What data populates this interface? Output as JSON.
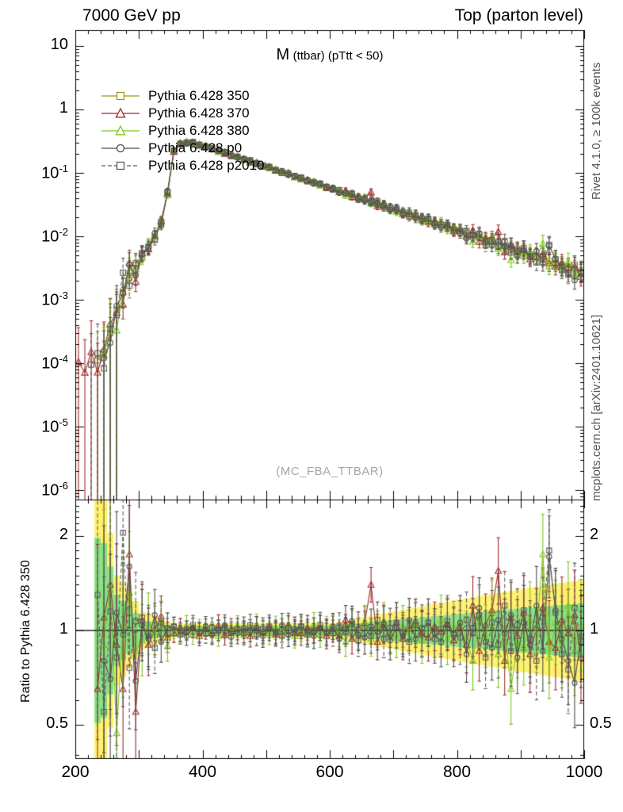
{
  "header": {
    "left": "7000 GeV pp",
    "right": "Top (parton level)"
  },
  "side_notes": {
    "right_top": "Rivet 4.1.0, ≥ 100k events",
    "right_bottom": "mcplots.cern.ch [arXiv:2401.10621]"
  },
  "watermark": "(MC_FBA_TTBAR)",
  "colors": {
    "axis": "#000000",
    "band_yellow": "#fff06e",
    "band_green": "#86e086",
    "watermark": "#a6a6a6"
  },
  "chart_data": {
    "type": "line",
    "title_main": "M",
    "title_sub": "(ttbar) (pTtt < 50)",
    "xlabel": "",
    "xlim": [
      200,
      1000
    ],
    "x_ticks": [
      200,
      400,
      600,
      800,
      1000
    ],
    "x_minor_step": 20,
    "x": [
      205,
      215,
      225,
      235,
      245,
      255,
      265,
      275,
      285,
      295,
      305,
      315,
      325,
      335,
      345,
      355,
      365,
      375,
      385,
      395,
      405,
      415,
      425,
      435,
      445,
      455,
      465,
      475,
      485,
      495,
      505,
      515,
      525,
      535,
      545,
      555,
      565,
      575,
      585,
      595,
      605,
      615,
      625,
      635,
      645,
      655,
      665,
      675,
      685,
      695,
      705,
      715,
      725,
      735,
      745,
      755,
      765,
      775,
      785,
      795,
      805,
      815,
      825,
      835,
      845,
      855,
      865,
      875,
      885,
      895,
      905,
      915,
      925,
      935,
      945,
      955,
      965,
      975,
      985,
      995
    ],
    "main_panel": {
      "ylog": true,
      "ylim_log": [
        -6.15,
        1.25
      ],
      "y_ticks": [
        {
          "v": 10,
          "label": "10"
        },
        {
          "v": 1,
          "label": "1"
        },
        {
          "v": 0.1,
          "label": "10^-1"
        },
        {
          "v": 0.01,
          "label": "10^-2"
        },
        {
          "v": 0.001,
          "label": "10^-3"
        },
        {
          "v": 0.0001,
          "label": "10^-4"
        },
        {
          "v": 1e-05,
          "label": "10^-5"
        },
        {
          "v": 1e-06,
          "label": "10^-6"
        }
      ],
      "ref_values": [
        9e-05,
        9.5e-05,
        0.0001,
        0.00011,
        0.00015,
        0.0003,
        0.0007,
        0.0013,
        0.0022,
        0.0035,
        0.005,
        0.007,
        0.01,
        0.016,
        0.05,
        0.22,
        0.29,
        0.3,
        0.295,
        0.28,
        0.26,
        0.2408,
        0.223,
        0.2065,
        0.1912,
        0.1771,
        0.164,
        0.1518,
        0.1406,
        0.1302,
        0.1206,
        0.1117,
        0.1034,
        0.0958,
        0.0887,
        0.0821,
        0.076,
        0.0704,
        0.0652,
        0.0604,
        0.0559,
        0.0518,
        0.048,
        0.0444,
        0.0411,
        0.0381,
        0.0353,
        0.0327,
        0.0302,
        0.028,
        0.0259,
        0.024,
        0.0222,
        0.0206,
        0.0191,
        0.0177,
        0.0164,
        0.0152,
        0.014,
        0.013,
        0.012,
        0.0111,
        0.0103,
        0.0095,
        0.0088,
        0.0082,
        0.0076,
        0.007,
        0.0065,
        0.006,
        0.0056,
        0.0052,
        0.0048,
        0.0044,
        0.0041,
        0.0038,
        0.0035,
        0.0033,
        0.003,
        0.0028
      ]
    },
    "series": [
      {
        "name": "Pythia 6.428 350",
        "color": "#9c9c1c",
        "marker": "square",
        "line": "solid",
        "first_bin": 3,
        "ratios": null
      },
      {
        "name": "Pythia 6.428 370",
        "color": "#a12828",
        "marker": "triangle",
        "line": "solid",
        "first_bin": 0,
        "ratios": [
          1.15,
          0.75,
          1.5,
          0.65,
          1.1,
          1.4,
          0.9,
          0.65,
          1.75,
          0.55,
          1.08,
          0.9,
          1.01,
          1.11,
          0.95,
          0.98,
          1.02,
          1.0,
          1.02,
          0.96,
          1.01,
          0.98,
          1.04,
          0.97,
          1.01,
          1.03,
          0.99,
          0.96,
          1.02,
          0.99,
          1.03,
          0.97,
          1.0,
          1.04,
          0.98,
          0.98,
          1.02,
          1.0,
          1.02,
          0.96,
          1.01,
          0.96,
          1.08,
          0.94,
          1.02,
          1.06,
          1.4,
          0.92,
          1.04,
          0.98,
          1.06,
          0.94,
          1.01,
          1.07,
          0.97,
          0.95,
          1.03,
          0.99,
          1.05,
          0.93,
          1.02,
          0.9,
          1.2,
          0.86,
          1.04,
          1.16,
          1.55,
          0.8,
          1.1,
          0.96,
          1.14,
          0.84,
          1.02,
          1.18,
          0.92,
          0.88,
          1.08,
          0.98,
          1.12,
          0.82
        ]
      },
      {
        "name": "Pythia 6.428 380",
        "color": "#7dc61e",
        "marker": "triangle",
        "line": "solid",
        "first_bin": 4,
        "ratios": [
          1.4,
          0.85,
          0.5,
          1.25,
          0.9,
          1.35,
          0.47,
          1.04,
          1.32,
          0.86,
          0.93,
          1.05,
          0.99,
          1.07,
          0.89,
          1.01,
          0.98,
          1.04,
          0.97,
          1.01,
          1.03,
          0.99,
          0.96,
          1.02,
          0.99,
          1.03,
          0.97,
          1.0,
          1.04,
          0.98,
          0.98,
          1.02,
          1.0,
          1.02,
          0.96,
          1.01,
          0.98,
          1.04,
          0.97,
          1.01,
          1.03,
          0.98,
          0.92,
          1.04,
          0.98,
          1.06,
          0.94,
          1.01,
          1.07,
          0.97,
          0.95,
          1.03,
          0.99,
          1.05,
          0.93,
          1.02,
          0.96,
          1.08,
          0.94,
          1.02,
          1.06,
          0.94,
          0.8,
          1.1,
          0.96,
          1.14,
          0.84,
          1.02,
          0.65,
          0.92,
          0.88,
          1.08,
          0.98,
          1.75,
          0.82,
          1.06,
          0.9,
          1.2,
          0.86,
          1.04
        ]
      },
      {
        "name": "Pythia 6.428 p0",
        "color": "#4d4d4d",
        "marker": "circle",
        "line": "solid",
        "first_bin": 4,
        "ratios": [
          1.35,
          0.6,
          1.05,
          1.45,
          0.8,
          0.7,
          1.14,
          0.97,
          1.6,
          0.69,
          1.04,
          0.94,
          1.12,
          0.92,
          1.02,
          1.03,
          0.99,
          0.96,
          1.02,
          0.99,
          1.03,
          0.97,
          1.0,
          1.04,
          0.98,
          0.98,
          1.02,
          1.0,
          1.02,
          0.96,
          1.01,
          0.98,
          1.04,
          0.97,
          1.01,
          1.03,
          0.99,
          0.96,
          1.02,
          0.99,
          1.03,
          0.94,
          1.01,
          1.07,
          0.97,
          0.95,
          1.03,
          0.99,
          1.05,
          0.93,
          1.02,
          0.96,
          1.08,
          0.94,
          1.02,
          1.06,
          0.98,
          0.92,
          1.04,
          0.98,
          1.06,
          0.84,
          1.02,
          1.18,
          0.92,
          0.88,
          1.08,
          0.98,
          1.12,
          0.82,
          1.06,
          0.9,
          1.2,
          0.86,
          1.72,
          1.16,
          0.94,
          0.8,
          0.68,
          0.96
        ]
      },
      {
        "name": "Pythia 6.428 p2010",
        "color": "#5a5a5a",
        "marker": "square",
        "line": "dashed",
        "first_bin": 2,
        "ratios": [
          0.7,
          1.2,
          0.95,
          1.3,
          0.55,
          1.15,
          0.82,
          2.05,
          0.76,
          1.07,
          1.1,
          0.96,
          0.88,
          1.06,
          0.98,
          1.03,
          0.97,
          1.0,
          1.04,
          0.98,
          0.98,
          1.02,
          1.0,
          1.02,
          0.96,
          1.01,
          0.98,
          1.04,
          0.97,
          1.01,
          1.03,
          0.99,
          0.96,
          1.02,
          0.99,
          1.03,
          0.97,
          1.0,
          1.04,
          0.98,
          0.98,
          1.03,
          0.99,
          1.05,
          0.93,
          1.02,
          0.96,
          1.08,
          0.94,
          1.02,
          1.06,
          0.98,
          0.92,
          1.04,
          0.98,
          1.06,
          0.94,
          1.01,
          1.07,
          0.97,
          0.95,
          1.08,
          0.98,
          1.12,
          0.82,
          1.06,
          0.9,
          1.2,
          0.86,
          1.04,
          1.16,
          0.94,
          0.8,
          1.1,
          1.8,
          1.14,
          0.84,
          0.75,
          1.18,
          0.92
        ]
      }
    ],
    "ratio_panel": {
      "ylabel": "Ratio to Pythia 6.428 350",
      "ylog": true,
      "ylim_log": [
        -0.41,
        0.418
      ],
      "y_ticks": [
        {
          "v": 2,
          "label": "2"
        },
        {
          "v": 1,
          "label": "1"
        },
        {
          "v": 0.5,
          "label": "0.5"
        }
      ],
      "band_yellow": {
        "x": [
          205,
          245,
          265,
          305,
          355,
          615,
          995
        ],
        "m": [
          3.0,
          2.6,
          1.5,
          1.15,
          1.05,
          1.06,
          1.45
        ]
      },
      "band_green": {
        "x": [
          205,
          245,
          265,
          305,
          355,
          615,
          995
        ],
        "m": [
          2.2,
          1.9,
          1.3,
          1.08,
          1.03,
          1.04,
          1.22
        ]
      },
      "err_band": {
        "x": [
          205,
          255,
          275,
          305,
          355,
          605,
          805,
          995
        ],
        "m": [
          3.5,
          2.5,
          1.7,
          1.3,
          1.07,
          1.1,
          1.22,
          1.4
        ]
      }
    }
  }
}
